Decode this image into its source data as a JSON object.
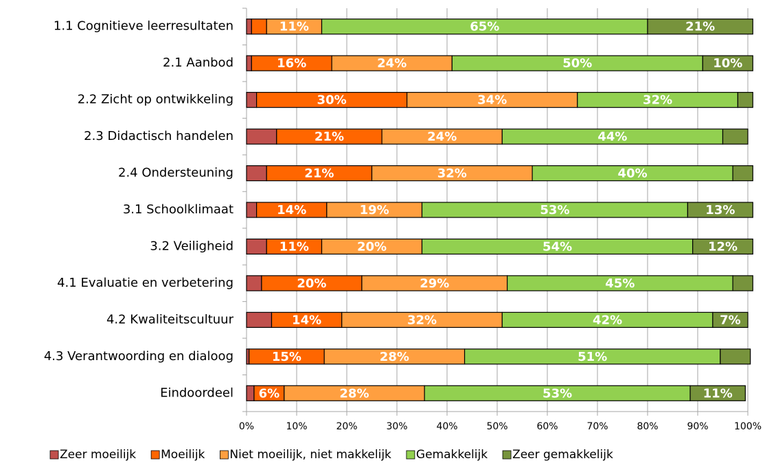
{
  "chart_data": {
    "type": "stacked-bar-horizontal",
    "categories": [
      "1.1 Cognitieve leerresultaten",
      "2.1 Aanbod",
      "2.2 Zicht op ontwikkeling",
      "2.3 Didactisch handelen",
      "2.4 Ondersteuning",
      "3.1 Schoolklimaat ",
      "3.2 Veiligheid",
      "4.1 Evaluatie en verbetering",
      "4.2 Kwaliteitscultuur",
      "4.3 Verantwoording en dialoog",
      "Eindoordeel"
    ],
    "series": [
      {
        "name": "Zeer moeilijk",
        "color": "#c0504d",
        "values": [
          1,
          1,
          2,
          6,
          4,
          2,
          4,
          3,
          5,
          0.5,
          1.5
        ],
        "value_labels": [
          null,
          null,
          null,
          null,
          null,
          null,
          null,
          null,
          null,
          null,
          null
        ]
      },
      {
        "name": "Moeilijk",
        "color": "#ff6600",
        "values": [
          3,
          16,
          30,
          21,
          21,
          14,
          11,
          20,
          14,
          15,
          6
        ],
        "value_labels": [
          null,
          "16%",
          "30%",
          "21%",
          "21%",
          "14%",
          "11%",
          "20%",
          "14%",
          "15%",
          "6%"
        ]
      },
      {
        "name": "Niet moeilijk, niet makkelijk",
        "color": "#ff9f40",
        "values": [
          11,
          24,
          34,
          24,
          32,
          19,
          20,
          29,
          32,
          28,
          28
        ],
        "value_labels": [
          "11%",
          "24%",
          "34%",
          "24%",
          "32%",
          "19%",
          "20%",
          "29%",
          "32%",
          "28%",
          "28%"
        ]
      },
      {
        "name": "Gemakkelijk",
        "color": "#92d050",
        "values": [
          65,
          50,
          32,
          44,
          40,
          53,
          54,
          45,
          42,
          51,
          53
        ],
        "value_labels": [
          "65%",
          "50%",
          "32%",
          "44%",
          "40%",
          "53%",
          "54%",
          "45%",
          "42%",
          "51%",
          "53%"
        ]
      },
      {
        "name": "Zeer gemakkelijk",
        "color": "#77933c",
        "values": [
          21,
          10,
          3,
          5,
          4,
          13,
          12,
          4,
          7,
          6,
          11
        ],
        "value_labels": [
          "21%",
          "10%",
          null,
          null,
          null,
          "13%",
          "12%",
          null,
          "7%",
          null,
          "11%"
        ]
      }
    ],
    "xlim": [
      0,
      100
    ],
    "xticks": [
      {
        "value": 0,
        "label": "0%"
      },
      {
        "value": 10,
        "label": "10%"
      },
      {
        "value": 20,
        "label": "20%"
      },
      {
        "value": 30,
        "label": "30%"
      },
      {
        "value": 40,
        "label": "40%"
      },
      {
        "value": 50,
        "label": "50%"
      },
      {
        "value": 60,
        "label": "60%"
      },
      {
        "value": 70,
        "label": "70%"
      },
      {
        "value": 80,
        "label": "80%"
      },
      {
        "value": 90,
        "label": "90%"
      },
      {
        "value": 100,
        "label": "100%"
      }
    ],
    "grid": true,
    "legend": "bottom"
  }
}
